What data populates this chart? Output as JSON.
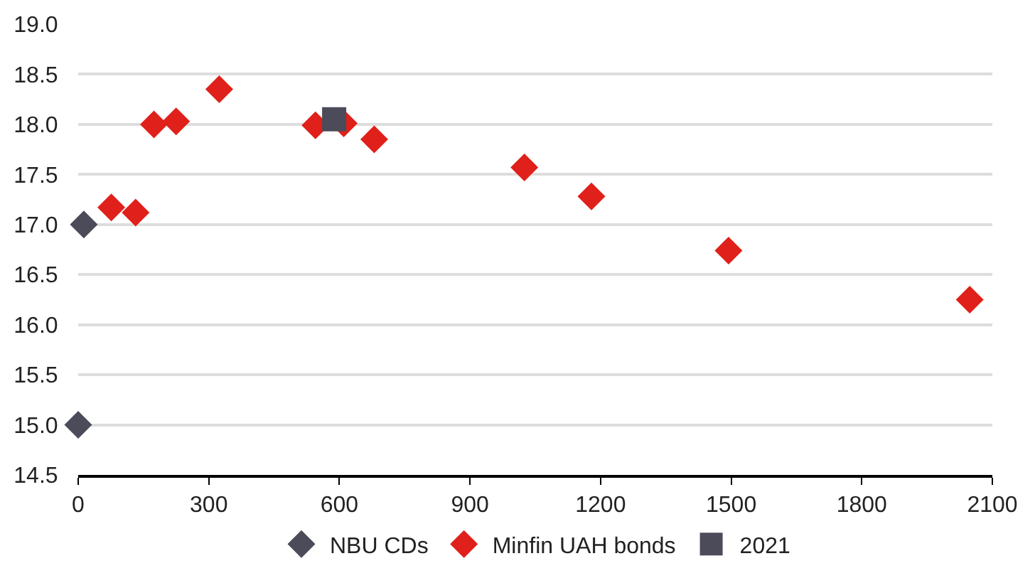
{
  "chart_data": {
    "type": "scatter",
    "xlim": [
      0,
      2100
    ],
    "xticks": [
      0,
      300,
      600,
      900,
      1200,
      1500,
      1800,
      2100
    ],
    "ylim": [
      14.5,
      19.0
    ],
    "yticks": [
      {
        "value": 14.5,
        "label": "14.5"
      },
      {
        "value": 15.0,
        "label": "15.0"
      },
      {
        "value": 15.5,
        "label": "15.5"
      },
      {
        "value": 16.0,
        "label": "16.0"
      },
      {
        "value": 16.5,
        "label": "16.5"
      },
      {
        "value": 17.0,
        "label": "17.0"
      },
      {
        "value": 17.5,
        "label": "17.5"
      },
      {
        "value": 18.0,
        "label": "18.0"
      },
      {
        "value": 18.5,
        "label": "18.5"
      },
      {
        "value": 19.0,
        "label": "19.0"
      }
    ],
    "grid": "y",
    "legend": "bottom",
    "series": [
      {
        "name": "NBU CDs",
        "color": "#4b4b5a",
        "marker": "diamond",
        "x": [
          13,
          0
        ],
        "values": [
          17.0,
          15.0
        ]
      },
      {
        "name": "Minfin UAH bonds",
        "color": "#e0201a",
        "marker": "diamond",
        "x": [
          76,
          132,
          174,
          225,
          324,
          545,
          610,
          680,
          1025,
          1179,
          1494,
          2048
        ],
        "values": [
          17.17,
          17.12,
          18.0,
          18.03,
          18.35,
          17.99,
          18.01,
          17.85,
          17.57,
          17.28,
          16.74,
          16.25
        ]
      },
      {
        "name": "2021",
        "color": "#4b4b5a",
        "marker": "square",
        "x": [
          588
        ],
        "values": [
          18.05
        ]
      }
    ]
  }
}
